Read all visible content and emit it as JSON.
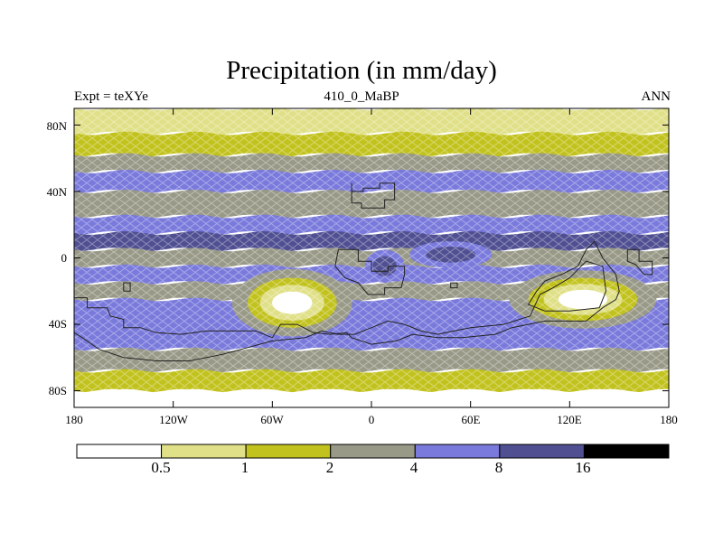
{
  "title": "Precipitation (in mm/day)",
  "subtitle_left": "Expt = teXYe",
  "subtitle_center": "410_0_MaBP",
  "subtitle_right": "ANN",
  "map": {
    "projection": "cylindrical-equidistant",
    "lon_range": [
      -180,
      180
    ],
    "lat_range": [
      -90,
      90
    ],
    "y_ticks": [
      {
        "lat": 80,
        "label": "80N"
      },
      {
        "lat": 40,
        "label": "40N"
      },
      {
        "lat": 0,
        "label": "0"
      },
      {
        "lat": -40,
        "label": "40S"
      },
      {
        "lat": -80,
        "label": "80S"
      }
    ],
    "x_ticks": [
      {
        "lon": -180,
        "label": "180"
      },
      {
        "lon": -120,
        "label": "120W"
      },
      {
        "lon": -60,
        "label": "60W"
      },
      {
        "lon": 0,
        "label": "0"
      },
      {
        "lon": 60,
        "label": "60E"
      },
      {
        "lon": 120,
        "label": "120E"
      },
      {
        "lon": 180,
        "label": "180"
      }
    ],
    "fill_pattern": "diamond-hatched contours",
    "coastlines": "paleogeographic (410 Ma)"
  },
  "colorbar": {
    "levels": [
      "0.5",
      "1",
      "2",
      "4",
      "8",
      "16"
    ],
    "colors": [
      "#ffffff",
      "#e0e088",
      "#c2c21e",
      "#999988",
      "#7a7adc",
      "#4f4f92",
      "#000000"
    ]
  },
  "chart_data": {
    "type": "heatmap",
    "title": "Precipitation (in mm/day)",
    "variable_units": "mm/day",
    "bins": [
      {
        "range": "<0.5",
        "color": "#ffffff"
      },
      {
        "range": "0.5-1",
        "color": "#e0e088"
      },
      {
        "range": "1-2",
        "color": "#c2c21e"
      },
      {
        "range": "2-4",
        "color": "#999988"
      },
      {
        "range": "4-8",
        "color": "#7a7adc"
      },
      {
        "range": "8-16",
        "color": "#4f4f92"
      },
      {
        "range": ">16",
        "color": "#000000"
      }
    ],
    "zonal_bands": [
      {
        "lat_range": [
          75,
          90
        ],
        "bin": "0.5-1"
      },
      {
        "lat_range": [
          62,
          75
        ],
        "bin": "1-2"
      },
      {
        "lat_range": [
          52,
          62
        ],
        "bin": "2-4"
      },
      {
        "lat_range": [
          40,
          52
        ],
        "bin": "4-8"
      },
      {
        "lat_range": [
          25,
          40
        ],
        "bin": "2-4"
      },
      {
        "lat_range": [
          15,
          25
        ],
        "bin": "4-8"
      },
      {
        "lat_range": [
          5,
          15
        ],
        "bin": "8-16"
      },
      {
        "lat_range": [
          -5,
          5
        ],
        "bin": "2-4"
      },
      {
        "lat_range": [
          -15,
          -5
        ],
        "bin": "4-8"
      },
      {
        "lat_range": [
          -25,
          -15
        ],
        "bin": "2-4"
      },
      {
        "lat_range": [
          -55,
          -25
        ],
        "bin": "4-8"
      },
      {
        "lat_range": [
          -68,
          -55
        ],
        "bin": "2-4"
      },
      {
        "lat_range": [
          -80,
          -68
        ],
        "bin": "1-2"
      },
      {
        "lat_range": [
          -90,
          -80
        ],
        "bin": "<0.5"
      }
    ],
    "dry_regions": [
      {
        "lon": -48,
        "lat": -27,
        "lon_radius": 27,
        "lat_radius": 15
      },
      {
        "lon": 128,
        "lat": -25,
        "lon_radius": 33,
        "lat_radius": 13
      }
    ],
    "moist_regions": [
      {
        "lon": 8,
        "lat": -5,
        "lon_radius": 12,
        "lat_radius": 10
      },
      {
        "lon": 48,
        "lat": 2,
        "lon_radius": 25,
        "lat_radius": 8
      }
    ]
  }
}
